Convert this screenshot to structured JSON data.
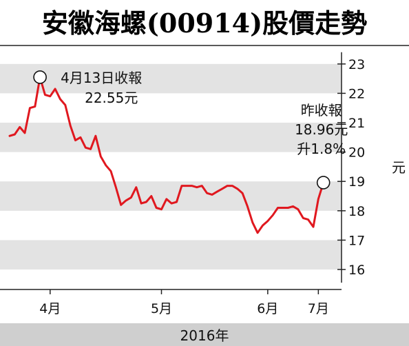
{
  "title": "安徽海螺(00914)股價走勢",
  "colors": {
    "line": "#e0181f",
    "band": "#e3e3e3",
    "axis": "#222222",
    "footer": "#cfcfcf",
    "marker_fill": "#ffffff"
  },
  "chart_data": {
    "type": "line",
    "title": "安徽海螺(00914)股價走勢",
    "xlabel": "2016年",
    "ylabel": "元",
    "ylim": [
      15.5,
      23.5
    ],
    "yticks": [
      16,
      17,
      18,
      19,
      20,
      21,
      22,
      23
    ],
    "x_tick_labels": [
      "4月",
      "5月",
      "6月",
      "7月"
    ],
    "x_tick_positions": [
      8,
      30,
      51,
      61
    ],
    "grid": "alternating horizontal bands",
    "series": [
      {
        "values": [
          [
            0,
            20.55
          ],
          [
            1,
            20.6
          ],
          [
            2,
            20.85
          ],
          [
            3,
            20.65
          ],
          [
            4,
            21.5
          ],
          [
            5,
            21.55
          ],
          [
            6,
            22.55
          ],
          [
            7,
            21.95
          ],
          [
            8,
            21.9
          ],
          [
            9,
            22.15
          ],
          [
            10,
            21.8
          ],
          [
            11,
            21.6
          ],
          [
            12,
            20.9
          ],
          [
            13,
            20.4
          ],
          [
            14,
            20.5
          ],
          [
            15,
            20.15
          ],
          [
            16,
            20.1
          ],
          [
            17,
            20.55
          ],
          [
            18,
            19.85
          ],
          [
            19,
            19.55
          ],
          [
            20,
            19.35
          ],
          [
            21,
            18.8
          ],
          [
            22,
            18.2
          ],
          [
            23,
            18.35
          ],
          [
            24,
            18.45
          ],
          [
            25,
            18.8
          ],
          [
            26,
            18.25
          ],
          [
            27,
            18.3
          ],
          [
            28,
            18.5
          ],
          [
            29,
            18.1
          ],
          [
            30,
            18.05
          ],
          [
            31,
            18.4
          ],
          [
            32,
            18.25
          ],
          [
            33,
            18.3
          ],
          [
            34,
            18.85
          ],
          [
            35,
            18.85
          ],
          [
            36,
            18.85
          ],
          [
            37,
            18.8
          ],
          [
            38,
            18.85
          ],
          [
            39,
            18.6
          ],
          [
            40,
            18.55
          ],
          [
            41,
            18.65
          ],
          [
            42,
            18.75
          ],
          [
            43,
            18.85
          ],
          [
            44,
            18.85
          ],
          [
            45,
            18.75
          ],
          [
            46,
            18.6
          ],
          [
            47,
            18.15
          ],
          [
            48,
            17.6
          ],
          [
            49,
            17.25
          ],
          [
            50,
            17.5
          ],
          [
            51,
            17.65
          ],
          [
            52,
            17.85
          ],
          [
            53,
            18.1
          ],
          [
            54,
            18.1
          ],
          [
            55,
            18.1
          ],
          [
            56,
            18.15
          ],
          [
            57,
            18.05
          ],
          [
            58,
            17.75
          ],
          [
            59,
            17.7
          ],
          [
            60,
            17.45
          ],
          [
            61,
            18.4
          ],
          [
            62,
            18.96
          ]
        ]
      }
    ],
    "annotations": [
      {
        "point_index": 6,
        "lines": [
          "4月13日收報",
          "22.55元"
        ]
      },
      {
        "point_index": 62,
        "lines": [
          "昨收報",
          "18.96元",
          "升1.8%"
        ]
      }
    ]
  }
}
